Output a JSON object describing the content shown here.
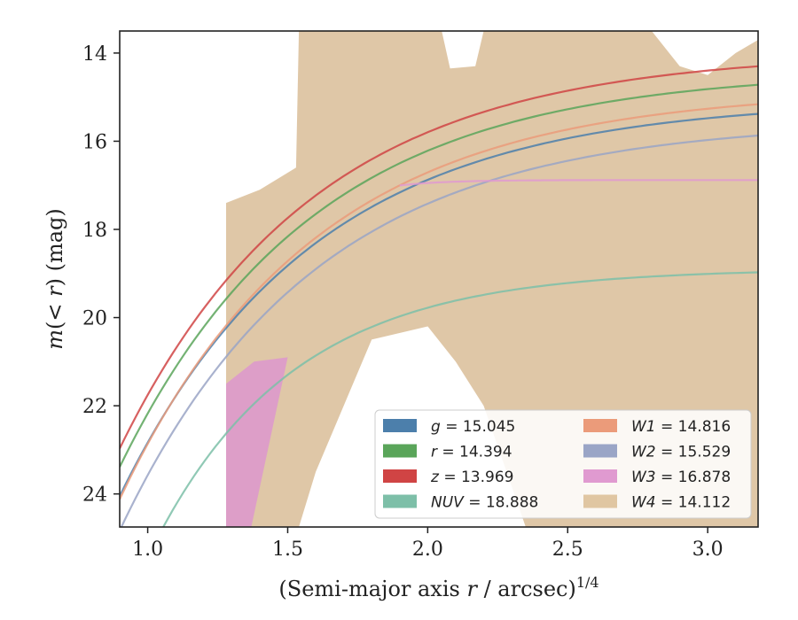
{
  "chart_data": {
    "type": "line",
    "xlabel": "(Semi-major axis r / arcsec)^1/4",
    "xlabel_parts": {
      "main": "(Semi-major axis ",
      "var": "r",
      "rest": " / arcsec)",
      "sup": "1/4"
    },
    "ylabel": "m(< r) (mag)",
    "ylabel_parts": {
      "var": "m",
      "rest": "(< ",
      "var2": "r",
      "rest2": ") (mag)"
    },
    "xlim": [
      0.9,
      3.18
    ],
    "ylim": [
      24.75,
      13.5
    ],
    "y_inverted": true,
    "xticks": [
      "1.0",
      "1.5",
      "2.0",
      "2.5",
      "3.0"
    ],
    "xtick_values": [
      1.0,
      1.5,
      2.0,
      2.5,
      3.0
    ],
    "yticks": [
      "14",
      "16",
      "18",
      "20",
      "22",
      "24"
    ],
    "ytick_values": [
      14,
      16,
      18,
      20,
      22,
      24
    ],
    "grid": false,
    "legend_position": "lower-right",
    "legend": [
      {
        "band": "g",
        "value": "15.045",
        "color": "#4c7fab"
      },
      {
        "band": "r",
        "value": "14.394",
        "color": "#5aa55a"
      },
      {
        "band": "z",
        "value": "13.969",
        "color": "#d04444"
      },
      {
        "band": "NUV",
        "value": "18.888",
        "color": "#7dbfa8"
      },
      {
        "band": "W1",
        "value": "14.816",
        "color": "#eb9b7a"
      },
      {
        "band": "W2",
        "value": "15.529",
        "color": "#9aa5c6"
      },
      {
        "band": "W3",
        "value": "16.878",
        "color": "#e09ad0"
      },
      {
        "band": "W4",
        "value": "14.112",
        "color": "#e0c6a2"
      }
    ],
    "series": [
      {
        "name": "W4",
        "color": "#dcc19d",
        "type": "band",
        "upper": [
          [
            1.28,
            17.4
          ],
          [
            1.4,
            17.1
          ],
          [
            1.53,
            16.6
          ],
          [
            1.54,
            13.5
          ],
          [
            1.95,
            13.5
          ],
          [
            2.0,
            13.5
          ],
          [
            2.05,
            13.5
          ],
          [
            2.08,
            14.35
          ],
          [
            2.17,
            14.3
          ],
          [
            2.2,
            13.5
          ],
          [
            2.4,
            13.5
          ],
          [
            2.45,
            13.5
          ],
          [
            2.6,
            13.5
          ],
          [
            2.8,
            13.5
          ],
          [
            2.9,
            14.3
          ],
          [
            3.0,
            14.5
          ],
          [
            3.1,
            14.0
          ],
          [
            3.18,
            13.7
          ]
        ],
        "lower": [
          [
            1.28,
            24.75
          ],
          [
            1.54,
            24.75
          ],
          [
            1.6,
            23.5
          ],
          [
            1.8,
            20.5
          ],
          [
            2.0,
            20.2
          ],
          [
            2.1,
            21.0
          ],
          [
            2.2,
            22.0
          ],
          [
            2.35,
            24.75
          ],
          [
            2.6,
            24.75
          ],
          [
            2.88,
            24.75
          ],
          [
            3.0,
            24.75
          ],
          [
            3.18,
            24.75
          ]
        ]
      },
      {
        "name": "W3",
        "color": "#dd99cc",
        "type": "band",
        "upper": [
          [
            1.28,
            21.5
          ],
          [
            1.38,
            21.0
          ],
          [
            1.5,
            20.9
          ]
        ],
        "lower": [
          [
            1.28,
            24.75
          ],
          [
            1.37,
            24.75
          ],
          [
            1.5,
            20.9
          ]
        ]
      },
      {
        "name": "g",
        "color": "#4c7fab",
        "type": "curve",
        "m_inf": 15.05,
        "amp": 9.0,
        "k": 1.45,
        "x0": 0.9,
        "x_end": 3.18
      },
      {
        "name": "r",
        "color": "#5aa55a",
        "type": "curve",
        "m_inf": 14.39,
        "amp": 9.0,
        "k": 1.45,
        "x0": 0.9,
        "x_end": 3.18
      },
      {
        "name": "z",
        "color": "#d04444",
        "type": "curve",
        "m_inf": 13.97,
        "amp": 9.0,
        "k": 1.45,
        "x0": 0.9,
        "x_end": 3.18
      },
      {
        "name": "W1",
        "color": "#eb9b7a",
        "type": "curve",
        "m_inf": 14.82,
        "amp": 9.3,
        "k": 1.45,
        "x0": 0.9,
        "x_end": 3.18
      },
      {
        "name": "W2",
        "color": "#9aa5c6",
        "type": "curve",
        "m_inf": 15.53,
        "amp": 9.3,
        "k": 1.45,
        "x0": 0.9,
        "x_end": 3.18
      },
      {
        "name": "NUV",
        "color": "#7dbfa8",
        "type": "curve",
        "m_inf": 18.89,
        "amp": 8.0,
        "k": 2.0,
        "x0": 0.9,
        "x_end": 3.18
      },
      {
        "name": "W3",
        "color": "#e09ad0",
        "type": "curve",
        "m_inf": 16.88,
        "amp": 50.0,
        "k": 6.0,
        "x0": 1.9,
        "x_end": 3.18
      }
    ]
  }
}
